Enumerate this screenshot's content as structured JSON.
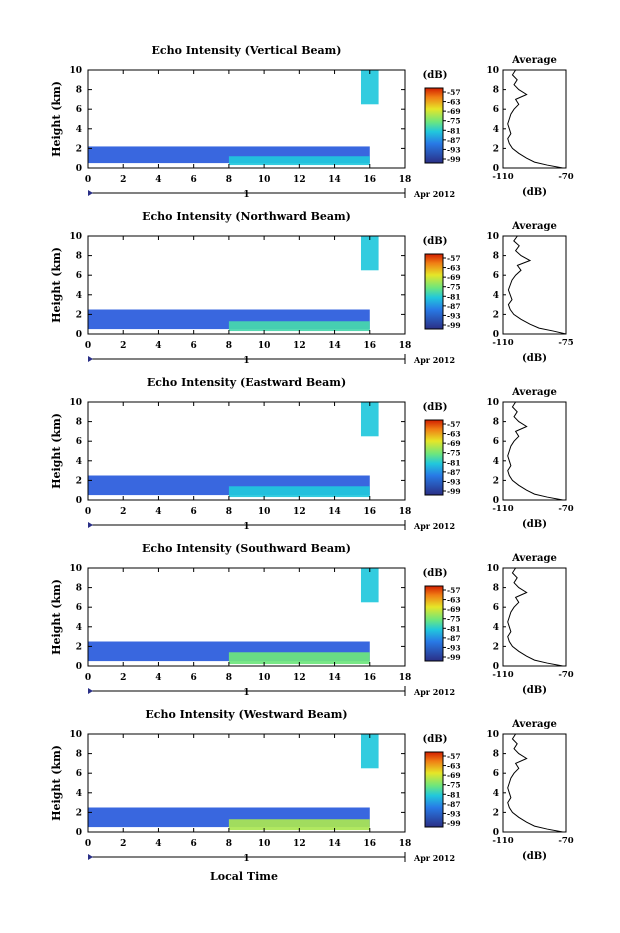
{
  "figure": {
    "xlabel": "Local Time",
    "date_label": "Apr 2012",
    "day_marker": "1",
    "ylabel": "Height (km)",
    "colorbar_unit": "(dB)",
    "colorbar_ticks": [
      "-57",
      "-63",
      "-69",
      "-75",
      "-81",
      "-87",
      "-93",
      "-99"
    ],
    "avg_title": "Average",
    "avg_xlabel": "(dB)",
    "xticks": [
      "0",
      "2",
      "4",
      "6",
      "8",
      "10",
      "12",
      "14",
      "16",
      "18"
    ],
    "yticks": [
      "0",
      "2",
      "4",
      "6",
      "8",
      "10"
    ]
  },
  "chart_data": [
    {
      "type": "heatmap",
      "title": "Echo Intensity (Vertical Beam)",
      "xlabel": "Local Time",
      "ylabel": "Height (km)",
      "xlim": [
        0,
        18
      ],
      "ylim": [
        0,
        10
      ],
      "colorbar": {
        "label": "(dB)",
        "range": [
          -99,
          -57
        ]
      },
      "profile": {
        "title": "Average",
        "xlabel": "(dB)",
        "xlim": [
          -110,
          -70
        ],
        "xtick_labels": [
          "-110",
          "-70"
        ]
      },
      "layers": [
        {
          "x": [
            0,
            16
          ],
          "height_km": [
            0.5,
            2.2
          ],
          "level_db": -93
        },
        {
          "x": [
            8,
            16
          ],
          "height_km": [
            0.3,
            1.2
          ],
          "level_db": -81
        },
        {
          "x": [
            15.5,
            16.5
          ],
          "height_km": [
            6.5,
            10
          ],
          "level_db": -81
        }
      ]
    },
    {
      "type": "heatmap",
      "title": "Echo Intensity (Northward Beam)",
      "xlabel": "Local Time",
      "ylabel": "Height (km)",
      "xlim": [
        0,
        18
      ],
      "ylim": [
        0,
        10
      ],
      "colorbar": {
        "label": "(dB)",
        "range": [
          -99,
          -57
        ]
      },
      "profile": {
        "title": "Average",
        "xlabel": "(dB)",
        "xlim": [
          -110,
          -75
        ],
        "xtick_labels": [
          "-110",
          "-75"
        ]
      },
      "layers": [
        {
          "x": [
            0,
            16
          ],
          "height_km": [
            0.5,
            2.5
          ],
          "level_db": -93
        },
        {
          "x": [
            8,
            16
          ],
          "height_km": [
            0.3,
            1.3
          ],
          "level_db": -78
        },
        {
          "x": [
            15.5,
            16.5
          ],
          "height_km": [
            6.5,
            10
          ],
          "level_db": -81
        }
      ]
    },
    {
      "type": "heatmap",
      "title": "Echo Intensity (Eastward Beam)",
      "xlabel": "Local Time",
      "ylabel": "Height (km)",
      "xlim": [
        0,
        18
      ],
      "ylim": [
        0,
        10
      ],
      "colorbar": {
        "label": "(dB)",
        "range": [
          -99,
          -57
        ]
      },
      "profile": {
        "title": "Average",
        "xlabel": "(dB)",
        "xlim": [
          -110,
          -70
        ],
        "xtick_labels": [
          "-110",
          "-70"
        ]
      },
      "layers": [
        {
          "x": [
            0,
            16
          ],
          "height_km": [
            0.5,
            2.5
          ],
          "level_db": -93
        },
        {
          "x": [
            8,
            16
          ],
          "height_km": [
            0.3,
            1.4
          ],
          "level_db": -81
        },
        {
          "x": [
            15.5,
            16.5
          ],
          "height_km": [
            6.5,
            10
          ],
          "level_db": -81
        }
      ]
    },
    {
      "type": "heatmap",
      "title": "Echo Intensity (Southward Beam)",
      "xlabel": "Local Time",
      "ylabel": "Height (km)",
      "xlim": [
        0,
        18
      ],
      "ylim": [
        0,
        10
      ],
      "colorbar": {
        "label": "(dB)",
        "range": [
          -99,
          -57
        ]
      },
      "profile": {
        "title": "Average",
        "xlabel": "(dB)",
        "xlim": [
          -110,
          -70
        ],
        "xtick_labels": [
          "-110",
          "-70"
        ]
      },
      "layers": [
        {
          "x": [
            0,
            16
          ],
          "height_km": [
            0.5,
            2.5
          ],
          "level_db": -93
        },
        {
          "x": [
            8,
            16
          ],
          "height_km": [
            0.2,
            1.4
          ],
          "level_db": -75
        },
        {
          "x": [
            15.5,
            16.5
          ],
          "height_km": [
            6.5,
            10
          ],
          "level_db": -81
        }
      ]
    },
    {
      "type": "heatmap",
      "title": "Echo Intensity (Westward Beam)",
      "xlabel": "Local Time",
      "ylabel": "Height (km)",
      "xlim": [
        0,
        18
      ],
      "ylim": [
        0,
        10
      ],
      "colorbar": {
        "label": "(dB)",
        "range": [
          -99,
          -57
        ]
      },
      "profile": {
        "title": "Average",
        "xlabel": "(dB)",
        "xlim": [
          -110,
          -70
        ],
        "xtick_labels": [
          "-110",
          "-70"
        ]
      },
      "layers": [
        {
          "x": [
            0,
            16
          ],
          "height_km": [
            0.5,
            2.5
          ],
          "level_db": -93
        },
        {
          "x": [
            8,
            16
          ],
          "height_km": [
            0.2,
            1.3
          ],
          "level_db": -72
        },
        {
          "x": [
            15.5,
            16.5
          ],
          "height_km": [
            6.5,
            10
          ],
          "level_db": -81
        }
      ]
    }
  ],
  "average_profile": {
    "height_km": [
      0,
      0.3,
      0.6,
      1,
      1.5,
      2,
      2.5,
      3,
      3.5,
      4,
      4.5,
      5,
      5.5,
      6,
      6.5,
      7,
      7.5,
      8,
      8.5,
      9,
      9.5,
      10
    ],
    "echo_db": [
      -72,
      -82,
      -90,
      -95,
      -100,
      -104,
      -106,
      -107,
      -105,
      -106,
      -107,
      -106,
      -105,
      -103,
      -100,
      -102,
      -95,
      -100,
      -103,
      -101,
      -104,
      -102
    ]
  },
  "colors": {
    "bar_top": "#d61a00",
    "bar_bottom": "#2a2a8a",
    "axis": "#000000"
  }
}
